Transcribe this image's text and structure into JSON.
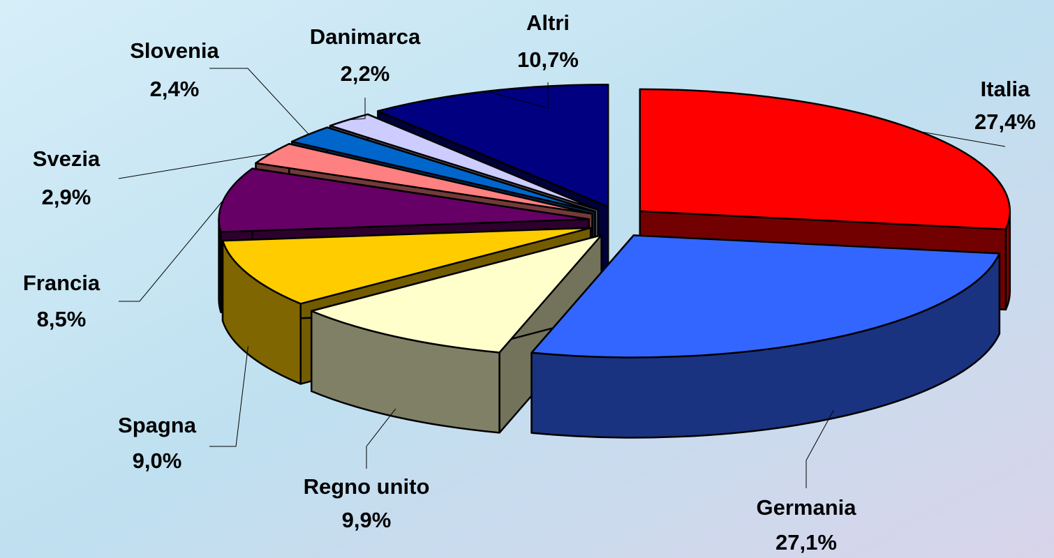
{
  "chart_data": {
    "type": "pie3d",
    "categories": [
      "Italia",
      "Germania",
      "Regno unito",
      "Spagna",
      "Francia",
      "Svezia",
      "Slovenia",
      "Danimarca",
      "Altri"
    ],
    "values": [
      27.4,
      27.1,
      9.9,
      9.0,
      8.5,
      2.9,
      2.4,
      2.2,
      10.7
    ],
    "value_labels": [
      "27,4%",
      "27,1%",
      "9,9%",
      "9,0%",
      "8,5%",
      "2,9%",
      "2,4%",
      "2,2%",
      "10,7%"
    ],
    "colors": [
      "#ff0000",
      "#3366ff",
      "#ffffcc",
      "#ffcc00",
      "#660066",
      "#ff8080",
      "#0066cc",
      "#ccccff",
      "#000080"
    ]
  }
}
